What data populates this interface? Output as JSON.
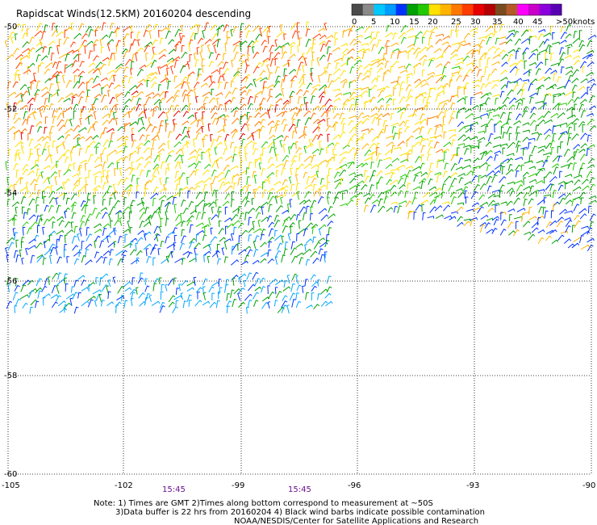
{
  "title": "Rapidscat Winds(12.5KM) 20160204 descending",
  "legend": {
    "unit": "knots",
    "labels": [
      "0",
      "5",
      "10",
      "15",
      "20",
      "25",
      "30",
      "35",
      "40",
      "45",
      ">50"
    ],
    "colors": [
      "#4a4a4a",
      "#8a8a8a",
      "#00c8ff",
      "#009cff",
      "#0032ff",
      "#00a000",
      "#22c800",
      "#ffe000",
      "#ffb400",
      "#ff7800",
      "#ff3c00",
      "#e60000",
      "#b40000",
      "#784b1e",
      "#b45a28",
      "#ff00ff",
      "#c800c8",
      "#8c00dc",
      "#5a00b4"
    ]
  },
  "axes": {
    "lat_labels": [
      "-50",
      "-52",
      "-54",
      "-56",
      "-58",
      "-60"
    ],
    "lon_labels": [
      "-105",
      "-102",
      "-99",
      "-96",
      "-93",
      "-90"
    ]
  },
  "times": [
    "15:45",
    "15:45"
  ],
  "notes": [
    "Note: 1) Times are GMT 2)Times along bottom correspond to measurement at ~50S",
    "3)Data buffer is 22 hrs from 20160204 4) Black wind barbs indicate possible contamination",
    "NOAA/NESDIS/Center for Satellite Applications and Research"
  ]
}
